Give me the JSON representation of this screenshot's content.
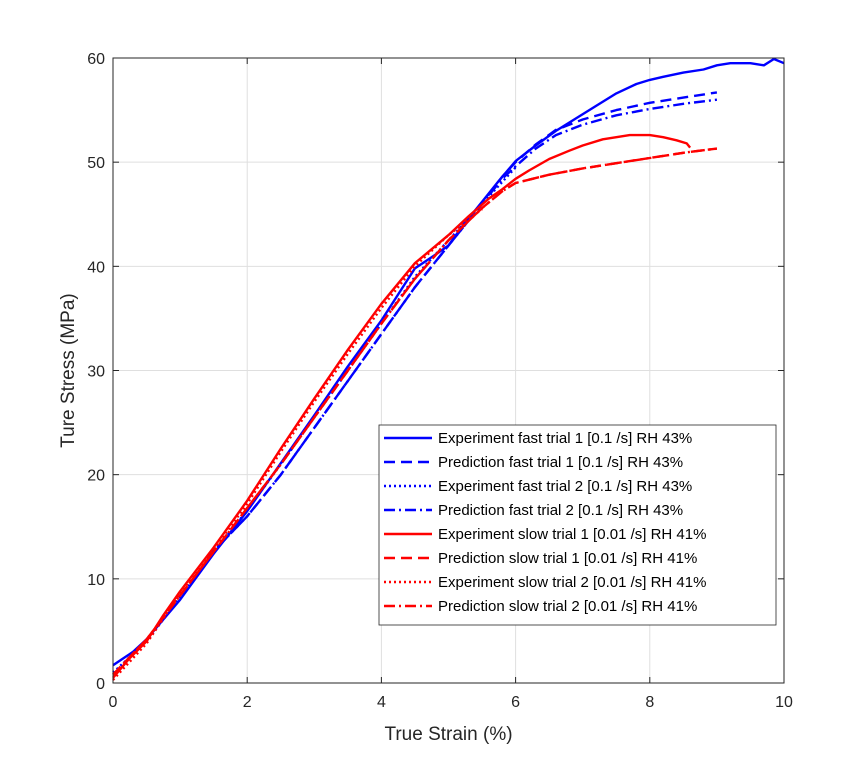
{
  "chart_data": {
    "type": "line",
    "title": "",
    "xlabel": "True Strain (%)",
    "ylabel": "Ture Stress (MPa)",
    "xlim": [
      0,
      10
    ],
    "ylim": [
      0,
      60
    ],
    "xticks": [
      "0",
      "2",
      "4",
      "6",
      "8",
      "10"
    ],
    "yticks": [
      "0",
      "10",
      "20",
      "30",
      "40",
      "50",
      "60"
    ],
    "grid": true,
    "legend_position": "lower-right",
    "series": [
      {
        "name": "Experiment fast trial 1 [0.1 /s] RH 43%",
        "color": "#0000ff",
        "style": "solid",
        "x": [
          0,
          0.3,
          0.5,
          0.75,
          1.0,
          1.5,
          2.0,
          2.5,
          3.0,
          3.5,
          4.0,
          4.5,
          4.8,
          5.0,
          5.2,
          5.5,
          5.75,
          6.0,
          6.3,
          6.6,
          6.9,
          7.2,
          7.5,
          7.8,
          8.0,
          8.2,
          8.5,
          8.8,
          9.0,
          9.2,
          9.5,
          9.7,
          9.85,
          10.0
        ],
        "y": [
          1.7,
          3.0,
          4.2,
          6.1,
          8.0,
          12.4,
          16.5,
          21.1,
          25.7,
          30.4,
          34.8,
          39.8,
          41.1,
          42.0,
          43.8,
          46.2,
          48.2,
          50.1,
          51.6,
          53.0,
          54.2,
          55.4,
          56.6,
          57.5,
          57.9,
          58.2,
          58.6,
          58.9,
          59.3,
          59.5,
          59.5,
          59.3,
          59.9,
          59.5
        ]
      },
      {
        "name": "Prediction fast trial 1 [0.1 /s] RH 43%",
        "color": "#0000ff",
        "style": "dashed",
        "x": [
          1.4,
          2.0,
          2.5,
          3.0,
          3.5,
          4.0,
          4.5,
          5.0,
          5.5,
          5.8,
          6.0,
          6.3,
          6.6,
          7.0,
          7.5,
          8.0,
          8.5,
          9.0
        ],
        "y": [
          12.0,
          16.0,
          20.0,
          24.5,
          29.0,
          33.5,
          38.0,
          42.0,
          46.0,
          48.6,
          50.0,
          51.7,
          53.1,
          54.1,
          55.0,
          55.7,
          56.2,
          56.7
        ]
      },
      {
        "name": "Experiment fast trial 2 [0.1 /s] RH 43%",
        "color": "#0000ff",
        "style": "dotted",
        "x": [
          0,
          0.5,
          1.0,
          1.5,
          2.0,
          2.5,
          3.0,
          3.5,
          4.0,
          4.5,
          5.0,
          5.5,
          6.0
        ],
        "y": [
          1.0,
          4.0,
          8.2,
          12.5,
          16.6,
          21.0,
          25.5,
          30.0,
          34.5,
          39.0,
          42.5,
          46.0,
          49.5
        ]
      },
      {
        "name": "Prediction fast trial 2 [0.1 /s] RH 43%",
        "color": "#0000ff",
        "style": "dashdot",
        "x": [
          1.4,
          2.0,
          2.5,
          3.0,
          3.5,
          4.0,
          4.5,
          5.0,
          5.5,
          5.8,
          6.0,
          6.3,
          6.6,
          7.0,
          7.5,
          8.0,
          8.5,
          9.0
        ],
        "y": [
          12.0,
          16.0,
          20.0,
          24.5,
          29.0,
          33.5,
          38.0,
          42.0,
          46.0,
          48.4,
          49.6,
          51.3,
          52.6,
          53.6,
          54.5,
          55.1,
          55.6,
          56.0
        ]
      },
      {
        "name": "Experiment slow trial 1 [0.01 /s] RH 41%",
        "color": "#ff0000",
        "style": "solid",
        "x": [
          0,
          0.25,
          0.5,
          0.75,
          1.0,
          1.5,
          2.0,
          2.5,
          3.0,
          3.5,
          4.0,
          4.5,
          5.0,
          5.3,
          5.6,
          5.8,
          6.0,
          6.2,
          6.5,
          6.8,
          7.0,
          7.3,
          7.5,
          7.7,
          8.0,
          8.2,
          8.4,
          8.55,
          8.6
        ],
        "y": [
          0.5,
          2.4,
          4.0,
          6.5,
          8.8,
          13.0,
          17.5,
          22.5,
          27.3,
          32.0,
          36.4,
          40.3,
          43.0,
          44.8,
          46.5,
          47.4,
          48.4,
          49.2,
          50.3,
          51.1,
          51.6,
          52.2,
          52.4,
          52.6,
          52.6,
          52.4,
          52.1,
          51.8,
          51.4
        ]
      },
      {
        "name": "Prediction slow trial 1 [0.01 /s] RH 41%",
        "color": "#ff0000",
        "style": "dashed",
        "x": [
          0,
          0.5,
          1.0,
          1.5,
          2.0,
          2.5,
          3.0,
          3.5,
          4.0,
          4.5,
          5.0,
          5.5,
          5.8,
          6.0,
          6.5,
          7.0,
          7.5,
          8.0,
          8.5,
          9.0
        ],
        "y": [
          0.8,
          4.2,
          8.4,
          12.6,
          16.8,
          21.0,
          25.5,
          30.0,
          34.5,
          38.8,
          42.5,
          45.6,
          47.2,
          48.0,
          48.8,
          49.4,
          49.9,
          50.4,
          50.9,
          51.3
        ]
      },
      {
        "name": "Experiment slow trial 2 [0.01 /s] RH 41%",
        "color": "#ff0000",
        "style": "dotted",
        "x": [
          0,
          0.5,
          1.0,
          1.5,
          2.0,
          2.5,
          3.0,
          3.5,
          4.0,
          4.5,
          5.0,
          5.5
        ],
        "y": [
          0.3,
          3.8,
          8.6,
          12.8,
          17.2,
          22.2,
          27.0,
          31.6,
          36.0,
          40.0,
          43.0,
          45.5
        ]
      },
      {
        "name": "Prediction slow trial 2 [0.01 /s] RH 41%",
        "color": "#ff0000",
        "style": "dashdot",
        "x": [
          0,
          0.5,
          1.0,
          1.5,
          2.0,
          2.5,
          3.0,
          3.5,
          4.0,
          4.5,
          5.0,
          5.5,
          5.8,
          6.0,
          6.5,
          7.0,
          7.5,
          8.0,
          8.5,
          9.0
        ],
        "y": [
          0.8,
          4.2,
          8.4,
          12.6,
          16.8,
          21.0,
          25.5,
          30.0,
          34.5,
          38.8,
          42.5,
          45.6,
          47.2,
          48.0,
          48.8,
          49.4,
          49.9,
          50.4,
          50.9,
          51.3
        ]
      }
    ]
  }
}
